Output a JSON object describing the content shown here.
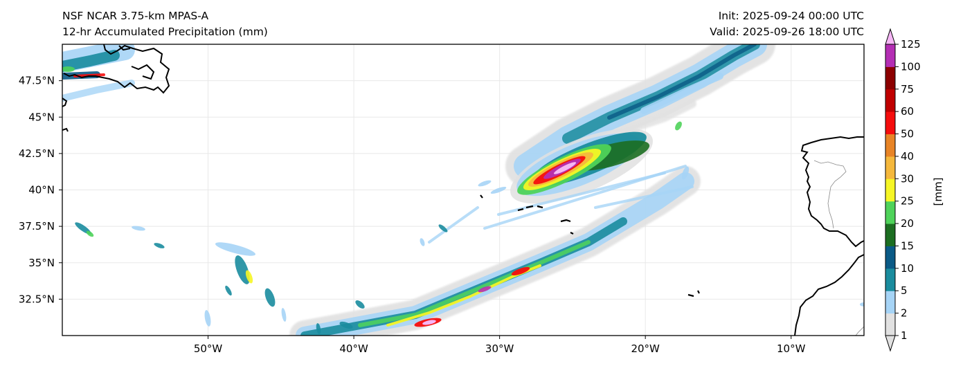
{
  "header": {
    "model": "NSF NCAR 3.75-km MPAS-A",
    "field": "12-hr Accumulated Precipitation (mm)",
    "init": "Init: 2025-09-24 00:00 UTC",
    "valid": "Valid: 2025-09-26 18:00 UTC"
  },
  "map": {
    "extent": {
      "lon": [
        -60,
        -5
      ],
      "lat": [
        30,
        50
      ]
    },
    "lat_ticks": [
      {
        "value": 47.5,
        "label": "47.5°N"
      },
      {
        "value": 45,
        "label": "45°N"
      },
      {
        "value": 42.5,
        "label": "42.5°N"
      },
      {
        "value": 40,
        "label": "40°N"
      },
      {
        "value": 37.5,
        "label": "37.5°N"
      },
      {
        "value": 35,
        "label": "35°N"
      },
      {
        "value": 32.5,
        "label": "32.5°N"
      }
    ],
    "lon_ticks": [
      {
        "value": -50,
        "label": "50°W"
      },
      {
        "value": -40,
        "label": "40°W"
      },
      {
        "value": -30,
        "label": "30°W"
      },
      {
        "value": -20,
        "label": "20°W"
      },
      {
        "value": -10,
        "label": "10°W"
      }
    ],
    "gridlines": true
  },
  "colorbar": {
    "unit_label": "[mm]",
    "levels": [
      "1",
      "2",
      "5",
      "10",
      "15",
      "20",
      "25",
      "30",
      "40",
      "50",
      "60",
      "75",
      "100",
      "125"
    ],
    "colors": [
      "#e1e1e1",
      "#a6d4f6",
      "#1a8c9e",
      "#0a5a86",
      "#1c6e21",
      "#4fd35a",
      "#f6f625",
      "#f5b83c",
      "#e88426",
      "#f50d0d",
      "#c00000",
      "#8c0000",
      "#b42eb4",
      "#f5b6f5"
    ],
    "extend": "both"
  },
  "colors": {
    "coastline": "#000000",
    "border": "#888888",
    "gridline": "#e8e8e8"
  }
}
